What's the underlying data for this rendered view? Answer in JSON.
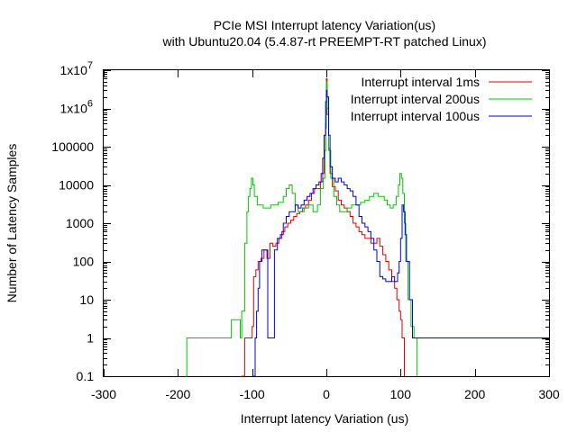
{
  "chart_data": {
    "type": "line",
    "title_line1": "PCIe MSI Interrupt latency Variation(us)",
    "title_line2": "with Ubuntu20.04 (5.4.87-rt PREEMPT-RT patched Linux)",
    "xlabel": "Interrupt latency Variation (us)",
    "ylabel": "Number of Latency Samples",
    "xlim": [
      -300,
      300
    ],
    "ylim": [
      0.1,
      10000000
    ],
    "y_scale": "log",
    "x_ticks": [
      -300,
      -200,
      -100,
      0,
      100,
      200,
      300
    ],
    "x_tick_labels": [
      "-300",
      "-200",
      "-100",
      "0",
      "100",
      "200",
      "300"
    ],
    "y_tick_labels": [
      {
        "value": 0.1,
        "label": "0.1"
      },
      {
        "value": 1,
        "label": "1"
      },
      {
        "value": 10,
        "label": "10"
      },
      {
        "value": 100,
        "label": "100"
      },
      {
        "value": 1000,
        "label": "1000"
      },
      {
        "value": 10000,
        "label": "10000"
      },
      {
        "value": 100000,
        "label": "100000"
      },
      {
        "value": 1000000,
        "label": "1x10",
        "exp": "6"
      },
      {
        "value": 10000000,
        "label": "1x10",
        "exp": "7"
      }
    ],
    "grid": false,
    "legend_position": "top-right",
    "series": [
      {
        "name": "Interrupt interval 1ms",
        "color": "#e00000",
        "points": [
          [
            -115,
            0.1
          ],
          [
            -110,
            1
          ],
          [
            -100,
            2
          ],
          [
            -98,
            40
          ],
          [
            -95,
            60
          ],
          [
            -92,
            100
          ],
          [
            -88,
            120
          ],
          [
            -84,
            200
          ],
          [
            -80,
            120
          ],
          [
            -76,
            300
          ],
          [
            -72,
            250
          ],
          [
            -68,
            300
          ],
          [
            -64,
            400
          ],
          [
            -60,
            600
          ],
          [
            -56,
            800
          ],
          [
            -52,
            1000
          ],
          [
            -48,
            1200
          ],
          [
            -44,
            1500
          ],
          [
            -40,
            1800
          ],
          [
            -36,
            2000
          ],
          [
            -32,
            2500
          ],
          [
            -28,
            3000
          ],
          [
            -24,
            4000
          ],
          [
            -20,
            6000
          ],
          [
            -16,
            8000
          ],
          [
            -12,
            8000
          ],
          [
            -8,
            12000
          ],
          [
            -5,
            20000
          ],
          [
            -3,
            80000
          ],
          [
            -1,
            400000
          ],
          [
            0,
            6000000
          ],
          [
            1,
            700000
          ],
          [
            3,
            90000
          ],
          [
            5,
            20000
          ],
          [
            8,
            9000
          ],
          [
            12,
            7000
          ],
          [
            16,
            4000
          ],
          [
            20,
            3000
          ],
          [
            24,
            2500
          ],
          [
            28,
            2000
          ],
          [
            32,
            1500
          ],
          [
            36,
            1000
          ],
          [
            40,
            800
          ],
          [
            44,
            600
          ],
          [
            48,
            500
          ],
          [
            52,
            400
          ],
          [
            56,
            400
          ],
          [
            60,
            300
          ],
          [
            64,
            300
          ],
          [
            68,
            400
          ],
          [
            72,
            250
          ],
          [
            76,
            150
          ],
          [
            80,
            100
          ],
          [
            84,
            60
          ],
          [
            88,
            30
          ],
          [
            92,
            20
          ],
          [
            95,
            10
          ],
          [
            98,
            5
          ],
          [
            100,
            3
          ],
          [
            102,
            1
          ],
          [
            105,
            0.1
          ]
        ]
      },
      {
        "name": "Interrupt interval 200us",
        "color": "#00c800",
        "points": [
          [
            -190,
            0.1
          ],
          [
            -188,
            1
          ],
          [
            -130,
            1
          ],
          [
            -128,
            3
          ],
          [
            -118,
            3
          ],
          [
            -116,
            1
          ],
          [
            -114,
            5
          ],
          [
            -110,
            300
          ],
          [
            -107,
            2000
          ],
          [
            -105,
            5000
          ],
          [
            -103,
            8000
          ],
          [
            -101,
            15000
          ],
          [
            -99,
            10000
          ],
          [
            -97,
            5000
          ],
          [
            -93,
            3000
          ],
          [
            -85,
            2500
          ],
          [
            -75,
            3000
          ],
          [
            -65,
            3500
          ],
          [
            -58,
            5000
          ],
          [
            -54,
            8000
          ],
          [
            -50,
            10000
          ],
          [
            -46,
            6000
          ],
          [
            -42,
            3000
          ],
          [
            -38,
            2000
          ],
          [
            -34,
            2000
          ],
          [
            -30,
            2500
          ],
          [
            -24,
            3000
          ],
          [
            -18,
            2000
          ],
          [
            -12,
            3000
          ],
          [
            -8,
            8000
          ],
          [
            -4,
            15000
          ],
          [
            -2,
            80000
          ],
          [
            -1,
            300000
          ],
          [
            0,
            5000000
          ],
          [
            1,
            1000000
          ],
          [
            3,
            80000
          ],
          [
            6,
            15000
          ],
          [
            10,
            5000
          ],
          [
            14,
            3000
          ],
          [
            18,
            2000
          ],
          [
            22,
            2000
          ],
          [
            28,
            2500
          ],
          [
            34,
            3000
          ],
          [
            40,
            3000
          ],
          [
            46,
            3500
          ],
          [
            52,
            4000
          ],
          [
            58,
            5000
          ],
          [
            64,
            6000
          ],
          [
            70,
            5000
          ],
          [
            74,
            5000
          ],
          [
            78,
            4000
          ],
          [
            82,
            3000
          ],
          [
            86,
            2500
          ],
          [
            90,
            3000
          ],
          [
            94,
            5000
          ],
          [
            97,
            10000
          ],
          [
            99,
            20000
          ],
          [
            101,
            15000
          ],
          [
            103,
            6000
          ],
          [
            105,
            1000
          ],
          [
            107,
            100
          ],
          [
            110,
            10
          ],
          [
            114,
            2
          ],
          [
            118,
            1
          ],
          [
            122,
            0.1
          ]
        ]
      },
      {
        "name": "Interrupt interval 100us",
        "color": "#0000e0",
        "points": [
          [
            -100,
            0.1
          ],
          [
            -98,
            0.1
          ],
          [
            -96,
            1
          ],
          [
            -94,
            5
          ],
          [
            -92,
            20
          ],
          [
            -90,
            100
          ],
          [
            -87,
            200
          ],
          [
            -83,
            200
          ],
          [
            -79,
            1
          ],
          [
            -76,
            1
          ],
          [
            -73,
            1
          ],
          [
            -70,
            200
          ],
          [
            -66,
            400
          ],
          [
            -62,
            500
          ],
          [
            -58,
            1000
          ],
          [
            -54,
            1500
          ],
          [
            -50,
            2000
          ],
          [
            -46,
            2000
          ],
          [
            -42,
            3000
          ],
          [
            -38,
            2500
          ],
          [
            -34,
            3000
          ],
          [
            -30,
            4000
          ],
          [
            -26,
            5000
          ],
          [
            -22,
            6000
          ],
          [
            -18,
            8000
          ],
          [
            -14,
            10000
          ],
          [
            -10,
            12000
          ],
          [
            -7,
            20000
          ],
          [
            -5,
            50000
          ],
          [
            -3,
            200000
          ],
          [
            -1,
            1500000
          ],
          [
            0,
            3000000
          ],
          [
            1,
            2000000
          ],
          [
            3,
            200000
          ],
          [
            5,
            30000
          ],
          [
            8,
            15000
          ],
          [
            12,
            12000
          ],
          [
            16,
            15000
          ],
          [
            20,
            12000
          ],
          [
            24,
            10000
          ],
          [
            28,
            8000
          ],
          [
            32,
            7000
          ],
          [
            36,
            5000
          ],
          [
            40,
            3000
          ],
          [
            44,
            1500
          ],
          [
            48,
            1000
          ],
          [
            52,
            800
          ],
          [
            56,
            600
          ],
          [
            60,
            400
          ],
          [
            64,
            200
          ],
          [
            68,
            100
          ],
          [
            72,
            40
          ],
          [
            76,
            35
          ],
          [
            80,
            30
          ],
          [
            84,
            30
          ],
          [
            88,
            40
          ],
          [
            92,
            30
          ],
          [
            96,
            50
          ],
          [
            98,
            100
          ],
          [
            100,
            400
          ],
          [
            102,
            3000
          ],
          [
            104,
            2000
          ],
          [
            106,
            500
          ],
          [
            108,
            100
          ],
          [
            112,
            10
          ],
          [
            116,
            1
          ],
          [
            118,
            1
          ],
          [
            300,
            1
          ]
        ]
      }
    ]
  }
}
